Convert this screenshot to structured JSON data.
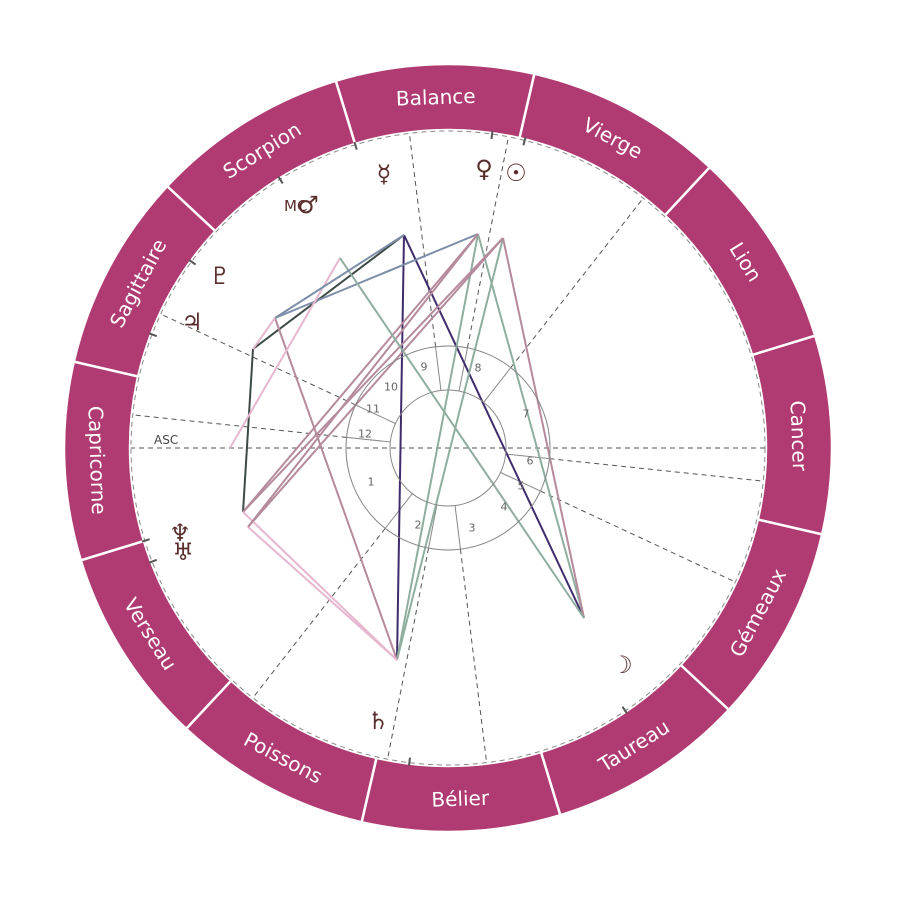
{
  "chart": {
    "asc_label": "ASC",
    "mc_label": "MC",
    "colors": {
      "ring": "#b03a72",
      "ring_divider": "#ffffff",
      "house_line": "#555555",
      "planet": "#5a2d2d"
    },
    "signs": [
      {
        "label": "Balance"
      },
      {
        "label": "Vierge"
      },
      {
        "label": "Lion"
      },
      {
        "label": "Cancer"
      },
      {
        "label": "Gémeaux"
      },
      {
        "label": "Taureau"
      },
      {
        "label": "Bélier"
      },
      {
        "label": "Poissons"
      },
      {
        "label": "Verseau"
      },
      {
        "label": "Capricorne"
      },
      {
        "label": "Sagittaire"
      },
      {
        "label": "Scorpion"
      }
    ],
    "houses": [
      "1",
      "2",
      "3",
      "4",
      "5",
      "6",
      "7",
      "8",
      "9",
      "10",
      "11",
      "12"
    ],
    "planets": [
      {
        "name": "mercury",
        "glyph": "☿"
      },
      {
        "name": "venus",
        "glyph": "♀"
      },
      {
        "name": "sun",
        "glyph": "☉"
      },
      {
        "name": "mars",
        "glyph": "♂"
      },
      {
        "name": "pluto",
        "glyph": "♇"
      },
      {
        "name": "jupiter",
        "glyph": "♃"
      },
      {
        "name": "neptune",
        "glyph": "♆"
      },
      {
        "name": "uranus",
        "glyph": "♅"
      },
      {
        "name": "saturn",
        "glyph": "♄"
      },
      {
        "name": "moon",
        "glyph": "☽"
      }
    ],
    "aspect_colors": [
      "#3f2c6b",
      "#8fae9f",
      "#b58a9c",
      "#e6b7cf",
      "#7c8ea8",
      "#3d4a45"
    ]
  }
}
